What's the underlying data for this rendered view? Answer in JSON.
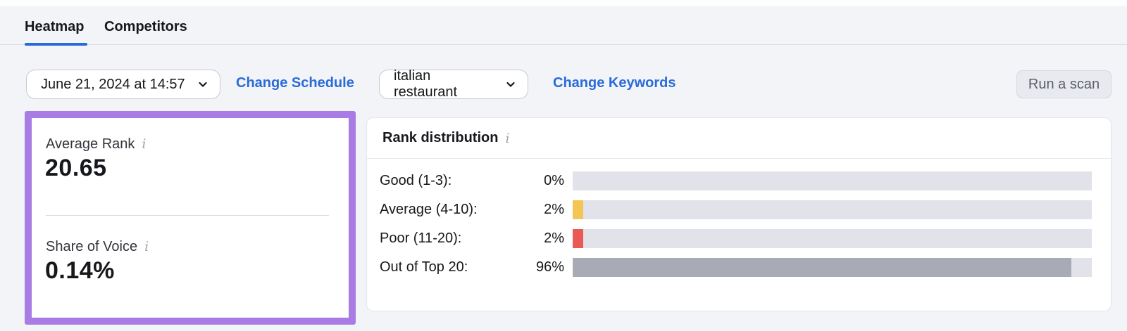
{
  "tabs": {
    "heatmap": "Heatmap",
    "competitors": "Competitors"
  },
  "controls": {
    "schedule_value": "June 21, 2024 at 14:57",
    "change_schedule": "Change Schedule",
    "keyword_value": "italian restaurant",
    "change_keywords": "Change Keywords",
    "run_scan": "Run a scan"
  },
  "metrics": {
    "average_rank_label": "Average Rank",
    "average_rank_value": "20.65",
    "share_of_voice_label": "Share of Voice",
    "share_of_voice_value": "0.14%",
    "info_icon": "i"
  },
  "chart_data": {
    "type": "bar",
    "orientation": "horizontal",
    "title": "Rank distribution",
    "categories": [
      "Good (1-3):",
      "Average (4-10):",
      "Poor (11-20):",
      "Out of Top 20:"
    ],
    "values": [
      0,
      2,
      2,
      96
    ],
    "value_labels": [
      "0%",
      "2%",
      "2%",
      "96%"
    ],
    "bar_colors": [
      "#e1e2ea",
      "#f4c454",
      "#ea5a55",
      "#a8abb5"
    ],
    "track_color": "#e1e2ea",
    "xlim": [
      0,
      100
    ],
    "grid": false,
    "legend": "none"
  },
  "colors": {
    "accent_blue": "#2a6bd9",
    "highlight_purple": "#a87ce4",
    "page_bg": "#f3f4f8",
    "bar_track": "#e1e2ea"
  }
}
